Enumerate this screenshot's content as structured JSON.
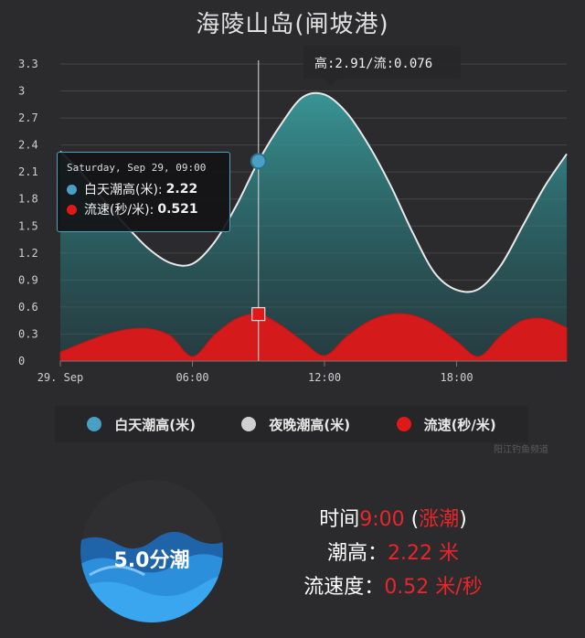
{
  "title": "海陵山岛(闸坡港)",
  "colors": {
    "tide_fill": "#2e8c8c",
    "tide_line": "#e8e8e8",
    "flow_fill": "#d41a1a",
    "day_dot": "#4a9fc4",
    "night_dot": "#d0d0d0",
    "flow_dot": "#e01818",
    "accent_red": "#e8252b"
  },
  "tooltip_top": {
    "text": "高:2.91/流:0.076"
  },
  "tooltip_main": {
    "date": "Saturday, Sep 29, 09:00",
    "rows": [
      {
        "label": "白天潮高(米):",
        "value": "2.22",
        "icon": "blue-dot-icon"
      },
      {
        "label": "流速(秒/米):",
        "value": "0.521",
        "icon": "red-dot-icon"
      }
    ]
  },
  "legend": [
    {
      "label": "白天潮高(米)",
      "icon": "blue-dot-icon"
    },
    {
      "label": "夜晚潮高(米)",
      "icon": "gray-dot-icon"
    },
    {
      "label": "流速(秒/米)",
      "icon": "red-dot-icon"
    }
  ],
  "watermark": "阳江钓鱼频道",
  "tide_state": {
    "label": "5.0分潮",
    "level": 0.5
  },
  "info": {
    "time_label": "时间",
    "time_value": "9:00",
    "trend": "(涨潮)",
    "trend_open": "(",
    "trend_word": "涨潮",
    "trend_close": ")",
    "height_label": "潮高：",
    "height_value": "2.22 米",
    "speed_label": "流速度：",
    "speed_value": "0.52 米/秒"
  },
  "chart_data": {
    "type": "area",
    "title": "海陵山岛(闸坡港)",
    "x_hours": [
      0,
      1,
      2,
      3,
      4,
      5,
      6,
      7,
      8,
      9,
      10,
      11,
      12,
      13,
      14,
      15,
      16,
      17,
      18,
      19,
      20,
      21,
      22,
      23
    ],
    "xlim": [
      0,
      23
    ],
    "xticks": [
      {
        "hour": 0,
        "label": "29. Sep"
      },
      {
        "hour": 6,
        "label": "06:00"
      },
      {
        "hour": 12,
        "label": "12:00"
      },
      {
        "hour": 18,
        "label": "18:00"
      }
    ],
    "ylim": [
      0,
      3.3
    ],
    "yticks": [
      "0",
      "0.3",
      "0.6",
      "0.9",
      "1.2",
      "1.5",
      "1.8",
      "2.1",
      "2.4",
      "2.7",
      "3",
      "3.3"
    ],
    "grid": true,
    "legend_position": "bottom",
    "series": [
      {
        "name": "白天潮高(米)",
        "values": [
          2.33,
          2.08,
          1.78,
          1.5,
          1.25,
          1.09,
          1.08,
          1.32,
          1.73,
          2.22,
          2.62,
          2.93,
          2.96,
          2.76,
          2.4,
          1.95,
          1.43,
          0.98,
          0.79,
          0.8,
          1.06,
          1.5,
          1.94,
          2.3
        ]
      },
      {
        "name": "流速(秒/米)",
        "values": [
          0.1,
          0.2,
          0.29,
          0.35,
          0.36,
          0.28,
          0.05,
          0.29,
          0.47,
          0.521,
          0.4,
          0.22,
          0.06,
          0.27,
          0.44,
          0.52,
          0.51,
          0.4,
          0.22,
          0.05,
          0.28,
          0.45,
          0.47,
          0.37
        ]
      }
    ],
    "highlight": {
      "hour": 9,
      "tide": 2.22,
      "flow": 0.521
    }
  }
}
